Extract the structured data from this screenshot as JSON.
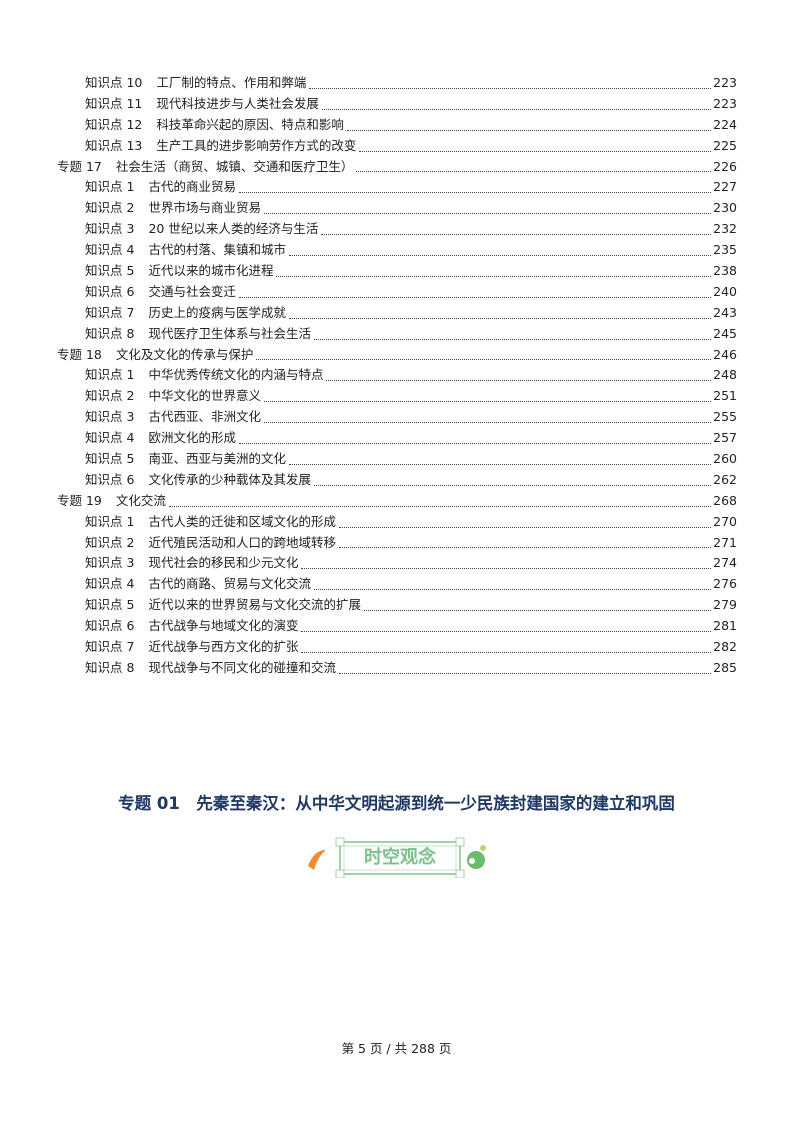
{
  "toc": [
    {
      "level": "sub",
      "num": "知识点 10",
      "title": "工厂制的特点、作用和弊端",
      "page": "223"
    },
    {
      "level": "sub",
      "num": "知识点 11",
      "title": "现代科技进步与人类社会发展",
      "page": "223"
    },
    {
      "level": "sub",
      "num": "知识点 12",
      "title": "科技革命兴起的原因、特点和影响",
      "page": "224"
    },
    {
      "level": "sub",
      "num": "知识点 13",
      "title": "生产工具的进步影响劳作方式的改变",
      "page": "225"
    },
    {
      "level": "topic",
      "num": "专题 17",
      "title": "社会生活（商贸、城镇、交通和医疗卫生）",
      "page": "226"
    },
    {
      "level": "sub",
      "num": "知识点 1",
      "title": "古代的商业贸易",
      "page": "227"
    },
    {
      "level": "sub",
      "num": "知识点 2",
      "title": "世界市场与商业贸易",
      "page": "230"
    },
    {
      "level": "sub",
      "num": "知识点 3",
      "title": "20 世纪以来人类的经济与生活",
      "page": "232"
    },
    {
      "level": "sub",
      "num": "知识点 4",
      "title": "古代的村落、集镇和城市",
      "page": "235"
    },
    {
      "level": "sub",
      "num": "知识点 5",
      "title": "近代以来的城市化进程",
      "page": "238"
    },
    {
      "level": "sub",
      "num": "知识点 6",
      "title": "交通与社会变迁",
      "page": "240"
    },
    {
      "level": "sub",
      "num": "知识点 7",
      "title": "历史上的疫病与医学成就",
      "page": "243"
    },
    {
      "level": "sub",
      "num": "知识点 8",
      "title": "现代医疗卫生体系与社会生活",
      "page": "245"
    },
    {
      "level": "topic",
      "num": "专题 18",
      "title": "文化及文化的传承与保护",
      "page": "246"
    },
    {
      "level": "sub",
      "num": "知识点 1",
      "title": "中华优秀传统文化的内涵与特点",
      "page": "248"
    },
    {
      "level": "sub",
      "num": "知识点 2",
      "title": "中华文化的世界意义",
      "page": "251"
    },
    {
      "level": "sub",
      "num": "知识点 3",
      "title": "古代西亚、非洲文化",
      "page": "255"
    },
    {
      "level": "sub",
      "num": "知识点 4",
      "title": "欧洲文化的形成",
      "page": "257"
    },
    {
      "level": "sub",
      "num": "知识点 5",
      "title": "南亚、西亚与美洲的文化",
      "page": "260"
    },
    {
      "level": "sub",
      "num": "知识点 6",
      "title": "文化传承的少种载体及其发展",
      "page": "262"
    },
    {
      "level": "topic",
      "num": "专题 19",
      "title": "文化交流",
      "page": "268"
    },
    {
      "level": "sub",
      "num": "知识点 1",
      "title": "古代人类的迁徙和区域文化的形成",
      "page": "270"
    },
    {
      "level": "sub",
      "num": "知识点 2",
      "title": "近代殖民活动和人口的跨地域转移",
      "page": "271"
    },
    {
      "level": "sub",
      "num": "知识点 3",
      "title": "现代社会的移民和少元文化",
      "page": "274"
    },
    {
      "level": "sub",
      "num": "知识点 4",
      "title": "古代的商路、贸易与文化交流",
      "page": "276"
    },
    {
      "level": "sub",
      "num": "知识点 5",
      "title": "近代以来的世界贸易与文化交流的扩展",
      "page": "279"
    },
    {
      "level": "sub",
      "num": "知识点 6",
      "title": "古代战争与地域文化的演变",
      "page": "281"
    },
    {
      "level": "sub",
      "num": "知识点 7",
      "title": "近代战争与西方文化的扩张",
      "page": "282"
    },
    {
      "level": "sub",
      "num": "知识点 8",
      "title": "现代战争与不同文化的碰撞和交流",
      "page": "285"
    }
  ],
  "section_title": "专题 01　先秦至秦汉：从中华文明起源到统一少民族封建国家的建立和巩固",
  "badge": {
    "label": "时空观念",
    "color": "#7cc08a"
  },
  "title_color": "#1f3864",
  "footer": "第 5 页 / 共 288 页"
}
